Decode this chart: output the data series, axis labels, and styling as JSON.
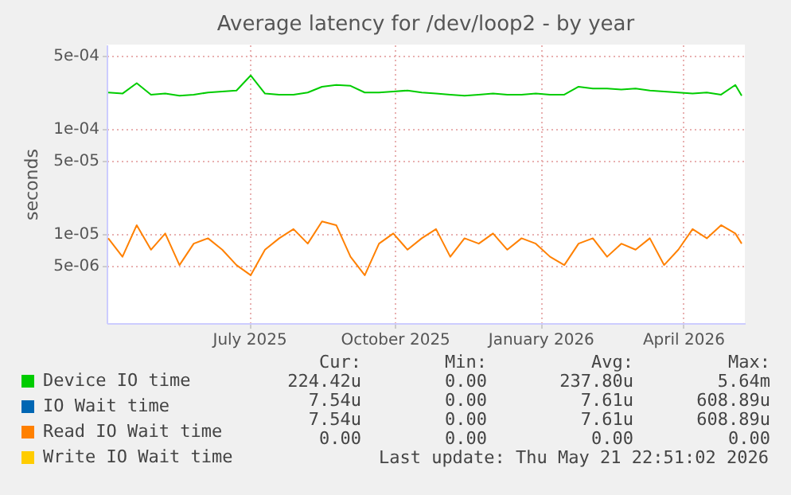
{
  "chart_data": {
    "type": "line",
    "title": "Average latency for /dev/loop2 - by year",
    "ylabel": "seconds",
    "x": [
      "2025-04-03",
      "2025-04-12",
      "2025-04-21",
      "2025-04-30",
      "2025-05-09",
      "2025-05-18",
      "2025-05-27",
      "2025-06-05",
      "2025-06-14",
      "2025-06-23",
      "2025-07-02",
      "2025-07-11",
      "2025-07-20",
      "2025-07-29",
      "2025-08-07",
      "2025-08-16",
      "2025-08-25",
      "2025-09-03",
      "2025-09-12",
      "2025-09-21",
      "2025-09-30",
      "2025-10-09",
      "2025-10-18",
      "2025-10-27",
      "2025-11-05",
      "2025-11-14",
      "2025-11-23",
      "2025-12-02",
      "2025-12-11",
      "2025-12-20",
      "2025-12-29",
      "2026-01-07",
      "2026-01-16",
      "2026-01-25",
      "2026-02-03",
      "2026-02-12",
      "2026-02-21",
      "2026-03-02",
      "2026-03-11",
      "2026-03-20",
      "2026-03-29",
      "2026-04-07",
      "2026-04-16",
      "2026-04-25",
      "2026-05-04",
      "2026-05-08"
    ],
    "series": [
      {
        "name": "Device IO time",
        "color": "#00cc00",
        "values": [
          0.00022,
          0.000215,
          0.00027,
          0.00021,
          0.000215,
          0.000205,
          0.00021,
          0.00022,
          0.000225,
          0.00023,
          0.00032,
          0.000215,
          0.00021,
          0.00021,
          0.00022,
          0.00025,
          0.00026,
          0.000255,
          0.00022,
          0.00022,
          0.000225,
          0.00023,
          0.00022,
          0.000215,
          0.00021,
          0.000205,
          0.00021,
          0.000215,
          0.00021,
          0.00021,
          0.000215,
          0.00021,
          0.00021,
          0.00025,
          0.00024,
          0.00024,
          0.000235,
          0.00024,
          0.00023,
          0.000225,
          0.00022,
          0.000215,
          0.00022,
          0.00021,
          0.00026,
          0.000205
        ]
      },
      {
        "name": "IO Wait time",
        "color": "#0066b3",
        "values": [
          null,
          null,
          null,
          null,
          null,
          null,
          null,
          null,
          null,
          null,
          null,
          null,
          null,
          null,
          null,
          null,
          null,
          null,
          null,
          null,
          null,
          null,
          null,
          null,
          null,
          null,
          null,
          null,
          null,
          null,
          null,
          null,
          null,
          null,
          null,
          null,
          null,
          null,
          null,
          null,
          null,
          null,
          null,
          null,
          null,
          null
        ]
      },
      {
        "name": "Read IO Wait time",
        "color": "#ff8000",
        "values": [
          9e-06,
          6e-06,
          1.2e-05,
          7e-06,
          1e-05,
          5e-06,
          8e-06,
          9e-06,
          7e-06,
          5e-06,
          4e-06,
          7e-06,
          9e-06,
          1.1e-05,
          8e-06,
          1.3e-05,
          1.2e-05,
          6e-06,
          4e-06,
          8e-06,
          1e-05,
          7e-06,
          9e-06,
          1.1e-05,
          6e-06,
          9e-06,
          8e-06,
          1e-05,
          7e-06,
          9e-06,
          8e-06,
          6e-06,
          5e-06,
          8e-06,
          9e-06,
          6e-06,
          8e-06,
          7e-06,
          9e-06,
          5e-06,
          7e-06,
          1.1e-05,
          9e-06,
          1.2e-05,
          1e-05,
          8e-06
        ]
      },
      {
        "name": "Write IO Wait time",
        "color": "#ffcc00",
        "values": [
          null,
          null,
          null,
          null,
          null,
          null,
          null,
          null,
          null,
          null,
          null,
          null,
          null,
          null,
          null,
          null,
          null,
          null,
          null,
          null,
          null,
          null,
          null,
          null,
          null,
          null,
          null,
          null,
          null,
          null,
          null,
          null,
          null,
          null,
          null,
          null,
          null,
          null,
          null,
          null,
          null,
          null,
          null,
          null,
          null,
          null
        ]
      }
    ],
    "log": true,
    "ylim": [
      1.4e-06,
      0.00063
    ],
    "yticks": [
      {
        "value": 5e-06,
        "label": "5e-06"
      },
      {
        "value": 1e-05,
        "label": "1e-05"
      },
      {
        "value": 5e-05,
        "label": "5e-05"
      },
      {
        "value": 0.0001,
        "label": "1e-04"
      },
      {
        "value": 0.0005,
        "label": "5e-04"
      }
    ],
    "xlim": [
      "2025-04-02",
      "2026-05-10"
    ],
    "xticks": [
      {
        "value": "2025-07-01",
        "label": "July 2025"
      },
      {
        "value": "2025-10-01",
        "label": "October 2025"
      },
      {
        "value": "2026-01-01",
        "label": "January 2026"
      },
      {
        "value": "2026-04-01",
        "label": "April 2026"
      }
    ],
    "grid": true,
    "legend": "bottom left",
    "annotations": [
      "Cur:",
      "Min:",
      "Avg:",
      "Max:",
      "224.42u",
      "0.00",
      "237.80u",
      "5.64m",
      "7.54u",
      "0.00",
      "7.61u",
      "608.89u",
      "7.54u",
      "0.00",
      "7.61u",
      "608.89u",
      "0.00",
      "0.00",
      "0.00",
      "0.00",
      "Last update: Thu May 21 22:51:02 2026"
    ]
  }
}
